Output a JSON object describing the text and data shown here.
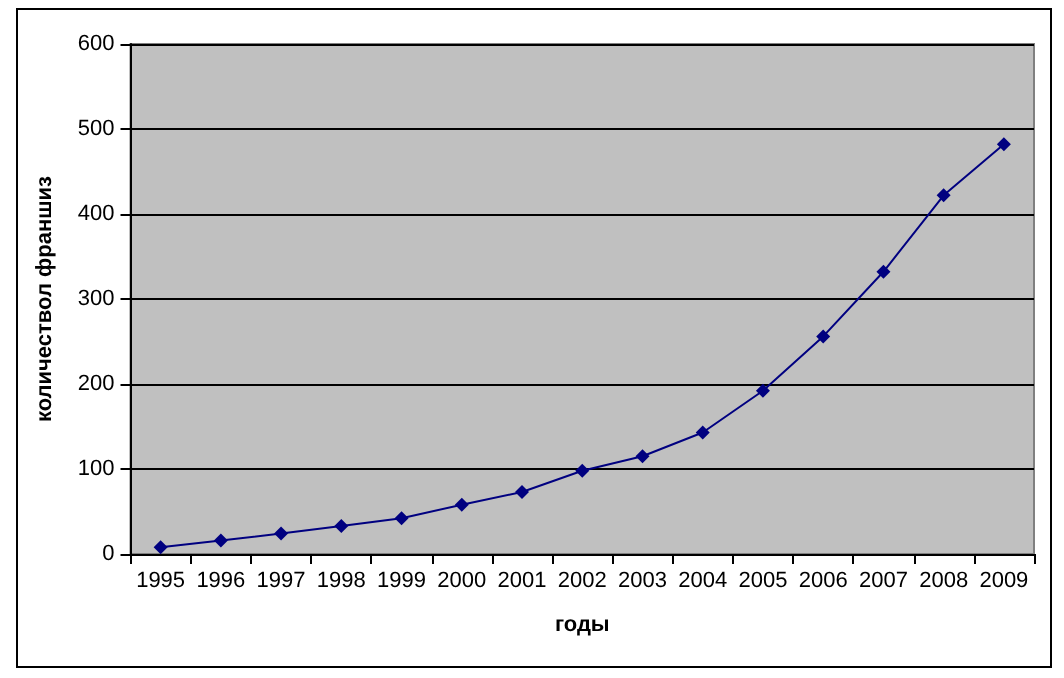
{
  "chart_data": {
    "type": "line",
    "xlabel": "годы",
    "ylabel": "количествол франшиз",
    "categories": [
      "1995",
      "1996",
      "1997",
      "1998",
      "1999",
      "2000",
      "2001",
      "2002",
      "2003",
      "2004",
      "2005",
      "2006",
      "2007",
      "2008",
      "2009"
    ],
    "series": [
      {
        "color": "#000080",
        "values": [
          8,
          16,
          24,
          33,
          42,
          58,
          73,
          98,
          115,
          143,
          192,
          256,
          332,
          422,
          482
        ]
      }
    ],
    "ylim": [
      0,
      600
    ],
    "yticks": [
      0,
      100,
      200,
      300,
      400,
      500,
      600
    ],
    "grid": "y",
    "marker": "diamond",
    "line_style": "solid"
  }
}
